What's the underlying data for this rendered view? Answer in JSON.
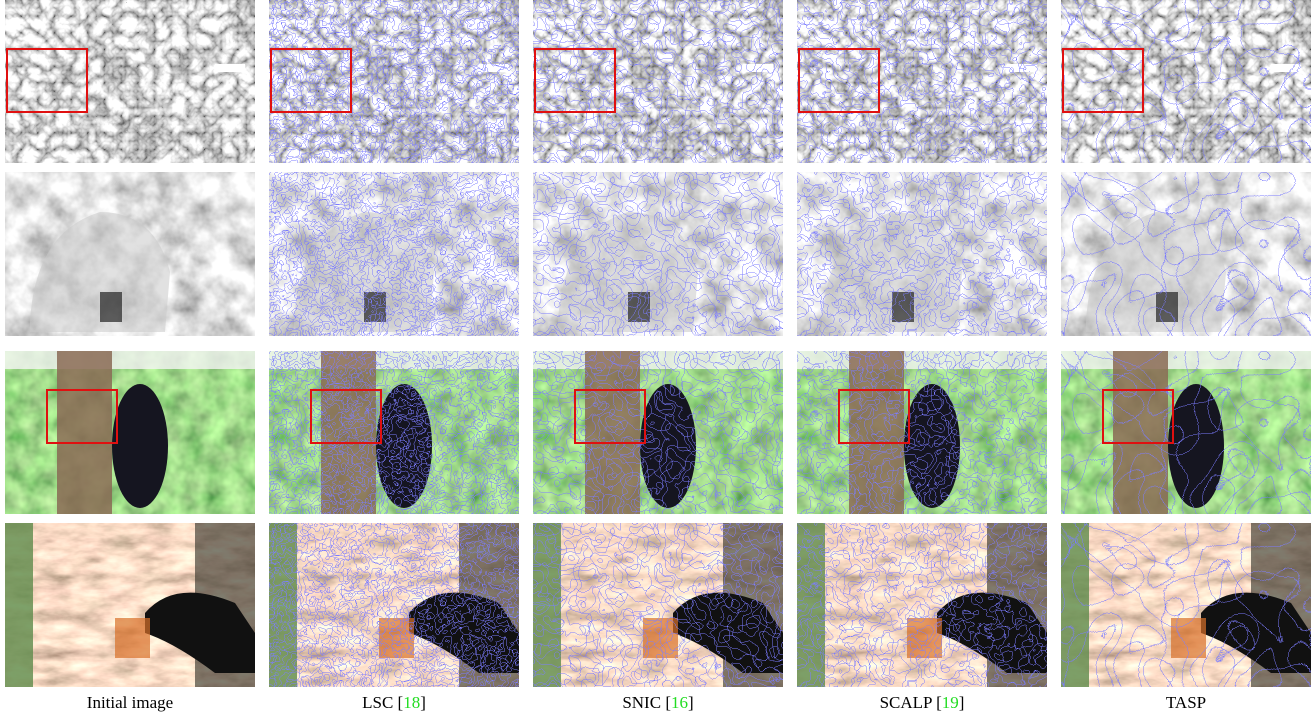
{
  "captions": [
    {
      "name": "Initial image"
    },
    {
      "name": "LSC",
      "open": "[",
      "ref": "18",
      "close": "]"
    },
    {
      "name": "SNIC",
      "open": "[",
      "ref": "16",
      "close": "]"
    },
    {
      "name": "SCALP",
      "open": "[",
      "ref": "19",
      "close": "]"
    },
    {
      "name": "TASP"
    }
  ]
}
